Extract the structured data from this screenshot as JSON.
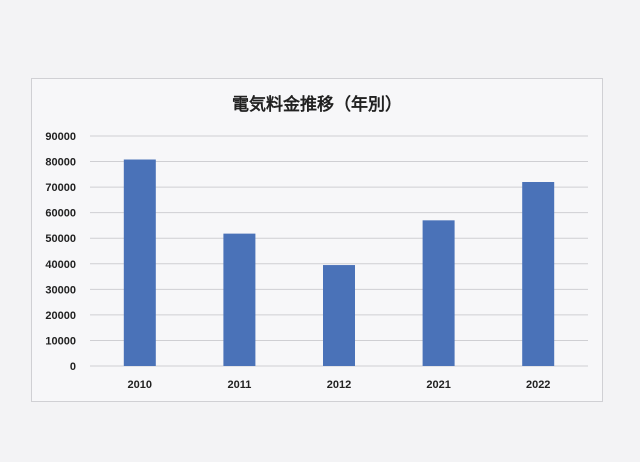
{
  "chart_data": {
    "type": "bar",
    "title": "電気料金推移（年別）",
    "categories": [
      "2010",
      "2011",
      "2012",
      "2021",
      "2022"
    ],
    "values": [
      80800,
      51800,
      39500,
      57000,
      72000
    ],
    "xlabel": "",
    "ylabel": "",
    "ylim": [
      0,
      90000
    ],
    "yticks": [
      0,
      10000,
      20000,
      30000,
      40000,
      50000,
      60000,
      70000,
      80000,
      90000
    ],
    "grid": true,
    "bar_color": "#4a72b8"
  }
}
